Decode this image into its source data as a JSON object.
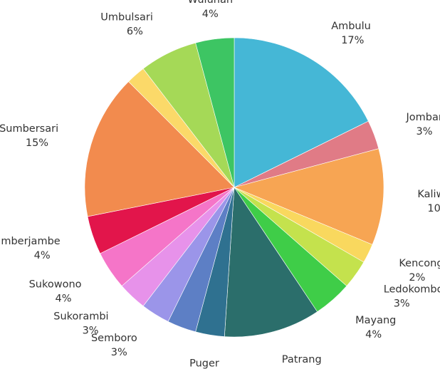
{
  "chart_data": {
    "type": "pie",
    "title": "",
    "slices": [
      {
        "label": "Ambulu",
        "pct": "17%",
        "value": 17,
        "color": "#45b7d6"
      },
      {
        "label": "Jombang",
        "pct": "3%",
        "value": 3,
        "color": "#e07b86"
      },
      {
        "label": "Kaliwates",
        "pct": "10%",
        "value": 10,
        "color": "#f7a553"
      },
      {
        "label": "Kencong",
        "pct": "2%",
        "value": 2,
        "color": "#f9d85e"
      },
      {
        "label": "Ledokombo",
        "pct": "3%",
        "value": 3,
        "color": "#c4e24d"
      },
      {
        "label": "Mayang",
        "pct": "4%",
        "value": 4,
        "color": "#3fcd48"
      },
      {
        "label": "Patrang",
        "pct": "10%",
        "value": 10,
        "color": "#2b6e6b"
      },
      {
        "label": "Puger",
        "pct": "3%",
        "value": 3,
        "color": "#2f7190"
      },
      {
        "label": "",
        "pct": "",
        "value": 3,
        "color": "#5d7fc5"
      },
      {
        "label": "Semboro",
        "pct": "3%",
        "value": 3,
        "color": "#9b95e9"
      },
      {
        "label": "Sukorambi",
        "pct": "3%",
        "value": 3,
        "color": "#e792ea"
      },
      {
        "label": "Sukowono",
        "pct": "4%",
        "value": 4,
        "color": "#f575c8"
      },
      {
        "label": "Sumberjambe",
        "pct": "4%",
        "value": 4,
        "color": "#e2154b"
      },
      {
        "label": "Sumbersari",
        "pct": "15%",
        "value": 15,
        "color": "#f28b4e"
      },
      {
        "label": "",
        "pct": "",
        "value": 2,
        "color": "#fbd969"
      },
      {
        "label": "Umbulsari",
        "pct": "6%",
        "value": 6,
        "color": "#a5d957"
      },
      {
        "label": "Wuluhan",
        "pct": "4%",
        "value": 4,
        "color": "#3dc563"
      }
    ]
  }
}
